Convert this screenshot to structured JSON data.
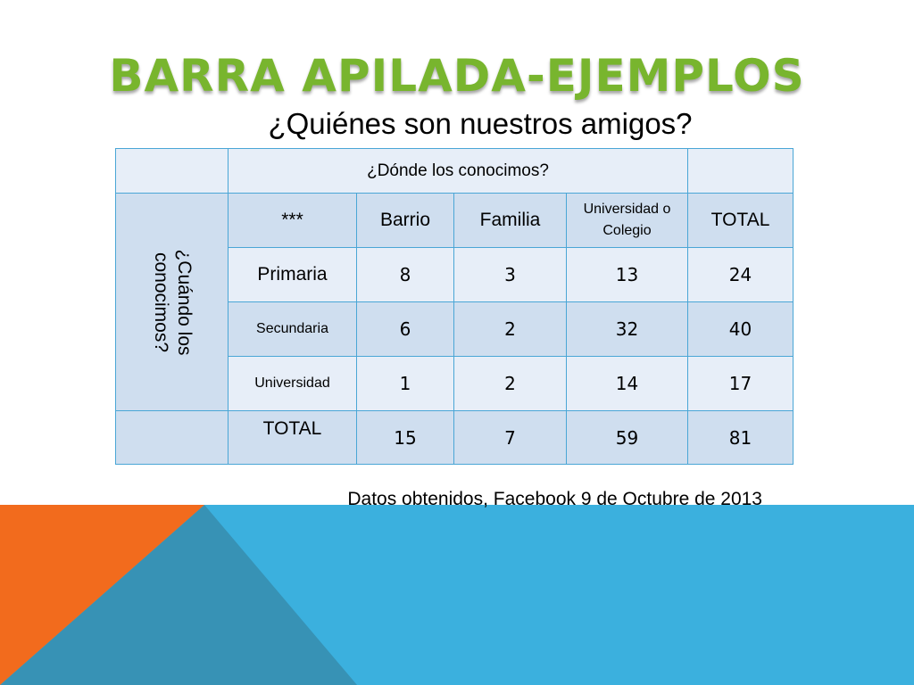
{
  "slide": {
    "title": "BARRA APILADA-EJEMPLOS",
    "subtitle": "¿Quiénes son nuestros amigos?",
    "source": "Datos obtenidos, Facebook 9 de Octubre de 2013"
  },
  "table": {
    "top_header": "¿Dónde los conocimos?",
    "row_group_label": "¿Cuándo los conocimos?",
    "corner_label": "***",
    "columns": [
      "Barrio",
      "Familia",
      "Universidad o Colegio",
      "TOTAL"
    ],
    "rows": [
      {
        "label": "Primaria",
        "values": [
          "8",
          "3",
          "13",
          "24"
        ]
      },
      {
        "label": "Secundaria",
        "values": [
          "6",
          "2",
          "32",
          "40"
        ]
      },
      {
        "label": "Universidad",
        "values": [
          "1",
          "2",
          "14",
          "17"
        ]
      }
    ],
    "total_row": {
      "label": "TOTAL",
      "values": [
        "15",
        "7",
        "59",
        "81"
      ]
    }
  },
  "colors": {
    "title_green": "#78b52e",
    "accent_orange": "#f26b1d",
    "accent_blue": "#3bb0de",
    "accent_blue_dark": "#3792b5",
    "table_border": "#4aa6d6"
  }
}
